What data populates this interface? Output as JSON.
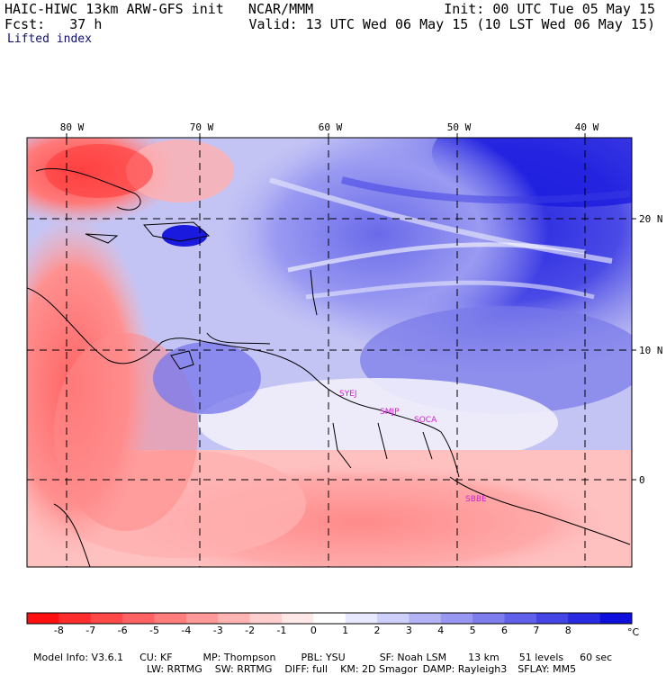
{
  "header": {
    "model_line": "HAIC-HIWC 13km ARW-GFS init   NCAR/MMM",
    "init": "Init: 00 UTC Tue 05 May 15",
    "fcst": "Fcst:   37 h",
    "valid": "Valid: 13 UTC Wed 06 May 15 (10 LST Wed 06 May 15)",
    "field": "Lifted index"
  },
  "map": {
    "lon_labels": [
      "80 W",
      "70 W",
      "60 W",
      "50 W",
      "40 W"
    ],
    "lat_labels": [
      "20 N",
      "10 N",
      "0"
    ],
    "stations": [
      "SYEJ",
      "SMJP",
      "SOCA",
      "SBBE"
    ],
    "station_color": "#d21fd2"
  },
  "colorbar": {
    "ticks": [
      "-8",
      "-7",
      "-6",
      "-5",
      "-4",
      "-3",
      "-2",
      "-1",
      "0",
      "1",
      "2",
      "3",
      "4",
      "5",
      "6",
      "7",
      "8"
    ],
    "unit": "°C",
    "colors": [
      "#ff0f0f",
      "#ff2d2d",
      "#ff4848",
      "#ff6262",
      "#ff7d7d",
      "#ff9898",
      "#ffb3b3",
      "#ffcece",
      "#ffe8e8",
      "#ffffff",
      "#e8e8ff",
      "#cfcffb",
      "#b3b3f6",
      "#9898f2",
      "#7d7dee",
      "#6060ea",
      "#4545e6",
      "#2a2ae2",
      "#0f0fdd"
    ]
  },
  "footer": {
    "line1": [
      {
        "label": "Model Info: V3.6.1"
      },
      {
        "label": "CU: KF"
      },
      {
        "label": "MP: Thompson"
      },
      {
        "label": "PBL: YSU"
      },
      {
        "label": "SF: Noah LSM"
      },
      {
        "label": "13 km"
      },
      {
        "label": "51 levels"
      },
      {
        "label": "60 sec"
      }
    ],
    "line2": [
      {
        "label": "LW: RRTMG"
      },
      {
        "label": "SW: RRTMG"
      },
      {
        "label": "DIFF: full"
      },
      {
        "label": "KM: 2D Smagor"
      },
      {
        "label": "DAMP: Rayleigh3"
      },
      {
        "label": "SFLAY: MM5"
      }
    ]
  }
}
